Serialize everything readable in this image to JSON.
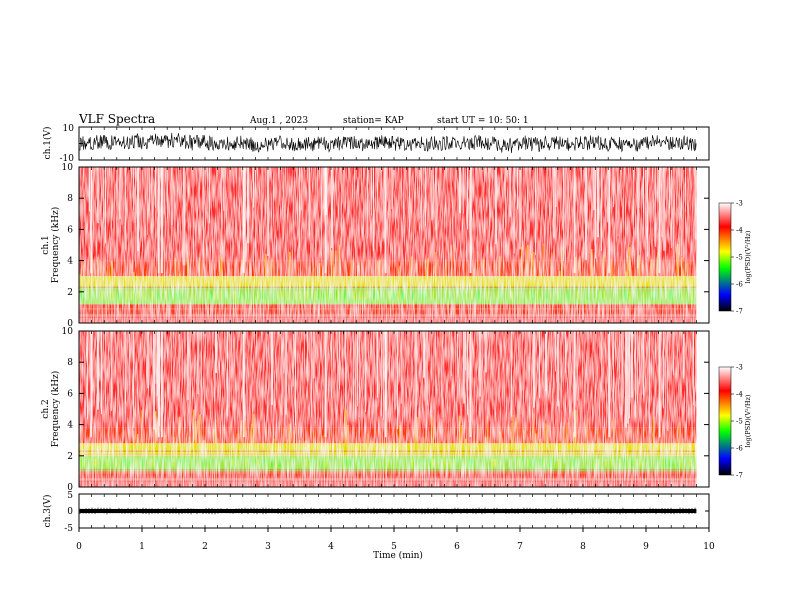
{
  "header": {
    "title": "VLF Spectra",
    "date": "Aug.1 , 2023",
    "station": "station= KAP",
    "start_ut": "start UT = 10: 50: 1"
  },
  "colors": {
    "colormap_high_to_low": [
      "#ffffff",
      "#ff0000",
      "#ffff00",
      "#00ff00",
      "#0000ff",
      "#000000"
    ],
    "trace": "#000000"
  },
  "chart_data": [
    {
      "type": "line",
      "name": "ch1-waveform",
      "ylabel": "ch.1(V)",
      "ylim": [
        -10,
        10
      ],
      "yticks": [
        "10",
        "-10"
      ],
      "xlim": [
        0,
        9.8
      ],
      "description_values": {
        "typical_range_V": [
          -5,
          5
        ]
      }
    },
    {
      "type": "heatmap",
      "name": "ch1-spectrogram",
      "ylabel_line1": "ch.1",
      "ylabel_line2": "Frequency (kHz)",
      "ylim": [
        0,
        10
      ],
      "yticks": [
        "0",
        "2",
        "4",
        "6",
        "8",
        "10"
      ],
      "xlim": [
        0,
        9.8
      ],
      "colorbar": {
        "label": "log(PSD)(V²/Hz)",
        "ticks": [
          "-3",
          "-4",
          "-5",
          "-6",
          "-7"
        ],
        "range": [
          -7,
          -3
        ]
      },
      "bands_kHz": {
        "green_low": 1.2,
        "green_high": 2.3,
        "yellow_top": 3.0
      }
    },
    {
      "type": "heatmap",
      "name": "ch2-spectrogram",
      "ylabel_line1": "ch.2",
      "ylabel_line2": "Frequency (kHz)",
      "ylim": [
        0,
        10
      ],
      "yticks": [
        "0",
        "2",
        "4",
        "6",
        "8",
        "10"
      ],
      "xlim": [
        0,
        9.8
      ],
      "colorbar": {
        "label": "log(PSD)(V²/Hz)",
        "ticks": [
          "-3",
          "-4",
          "-5",
          "-6",
          "-7"
        ],
        "range": [
          -7,
          -3
        ]
      },
      "bands_kHz": {
        "green_low": 1.0,
        "green_high": 2.0,
        "yellow_top": 2.8
      }
    },
    {
      "type": "line",
      "name": "ch3-waveform",
      "ylabel": "ch.3(V)",
      "ylim": [
        -5,
        5
      ],
      "yticks": [
        "5",
        "0",
        "-5"
      ],
      "xlim": [
        0,
        9.8
      ],
      "description_values": {
        "band_V": [
          -0.6,
          0.6
        ]
      }
    }
  ],
  "xaxis": {
    "label": "Time (min)",
    "range": [
      0,
      10
    ],
    "ticks": [
      "0",
      "1",
      "2",
      "3",
      "4",
      "5",
      "6",
      "7",
      "8",
      "9",
      "10"
    ]
  }
}
